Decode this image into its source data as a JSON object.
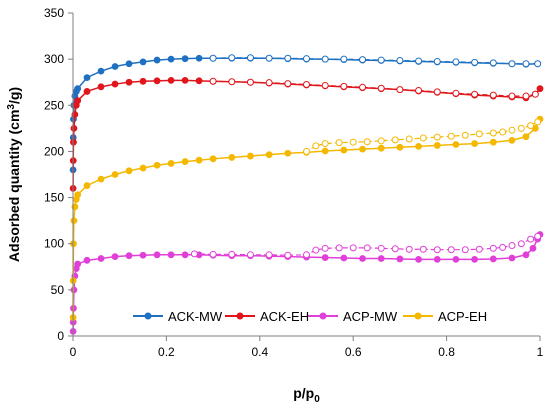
{
  "chart_data": {
    "type": "scatter",
    "xlabel": "p/p",
    "xlabel_sub": "0",
    "ylabel": "Adsorbed quantity (cm",
    "ylabel_sup": "3",
    "ylabel_end": "/g)",
    "xlim": [
      0,
      1
    ],
    "ylim": [
      0,
      350
    ],
    "x_ticks": [
      0,
      0.2,
      0.4,
      0.6,
      0.8,
      1
    ],
    "x_tick_labels": [
      "0",
      "0.2",
      "0.4",
      "0.6",
      "0.8",
      "1"
    ],
    "y_ticks": [
      0,
      50,
      100,
      150,
      200,
      250,
      300,
      350
    ],
    "y_tick_labels": [
      "0",
      "50",
      "100",
      "150",
      "200",
      "250",
      "300",
      "350"
    ],
    "grid": false,
    "legend_position": "bottom",
    "series": [
      {
        "name": "ACK-MW",
        "color": "#1f70c1",
        "adsorption": [
          [
            0.0002,
            180
          ],
          [
            0.0005,
            215
          ],
          [
            0.001,
            235
          ],
          [
            0.002,
            250
          ],
          [
            0.004,
            260
          ],
          [
            0.007,
            265
          ],
          [
            0.01,
            268
          ],
          [
            0.03,
            280
          ],
          [
            0.06,
            287
          ],
          [
            0.09,
            292
          ],
          [
            0.12,
            295
          ],
          [
            0.15,
            297
          ],
          [
            0.18,
            299
          ],
          [
            0.21,
            300
          ],
          [
            0.24,
            300.5
          ],
          [
            0.27,
            301
          ],
          [
            0.3,
            301
          ],
          [
            0.34,
            301
          ],
          [
            0.38,
            301
          ],
          [
            0.42,
            301
          ],
          [
            0.46,
            300.5
          ],
          [
            0.5,
            300
          ],
          [
            0.54,
            300
          ],
          [
            0.58,
            299.5
          ],
          [
            0.62,
            299
          ],
          [
            0.66,
            298.5
          ],
          [
            0.7,
            298
          ],
          [
            0.74,
            297.5
          ],
          [
            0.78,
            297
          ],
          [
            0.82,
            296.5
          ],
          [
            0.86,
            296
          ],
          [
            0.9,
            295.5
          ],
          [
            0.94,
            295
          ],
          [
            0.97,
            294.5
          ],
          [
            0.995,
            295
          ]
        ],
        "desorption": [
          [
            0.995,
            295
          ],
          [
            0.97,
            295
          ],
          [
            0.94,
            295
          ],
          [
            0.9,
            296
          ],
          [
            0.86,
            296.5
          ],
          [
            0.82,
            297
          ],
          [
            0.78,
            297.5
          ],
          [
            0.74,
            298
          ],
          [
            0.7,
            298.5
          ],
          [
            0.66,
            299
          ],
          [
            0.62,
            299.5
          ],
          [
            0.58,
            300
          ],
          [
            0.54,
            300
          ],
          [
            0.5,
            300.5
          ],
          [
            0.46,
            301
          ],
          [
            0.42,
            301
          ],
          [
            0.38,
            301.5
          ],
          [
            0.34,
            301.5
          ],
          [
            0.3,
            301
          ]
        ]
      },
      {
        "name": "ACK-EH",
        "color": "#e0161c",
        "adsorption": [
          [
            0.0002,
            160
          ],
          [
            0.0005,
            190
          ],
          [
            0.001,
            210
          ],
          [
            0.002,
            225
          ],
          [
            0.004,
            240
          ],
          [
            0.007,
            250
          ],
          [
            0.01,
            255
          ],
          [
            0.03,
            265
          ],
          [
            0.06,
            270
          ],
          [
            0.09,
            273
          ],
          [
            0.12,
            275
          ],
          [
            0.15,
            276
          ],
          [
            0.18,
            276.5
          ],
          [
            0.21,
            277
          ],
          [
            0.24,
            277
          ],
          [
            0.27,
            276.5
          ],
          [
            0.3,
            276
          ],
          [
            0.34,
            275.5
          ],
          [
            0.38,
            275
          ],
          [
            0.42,
            274
          ],
          [
            0.46,
            273
          ],
          [
            0.5,
            272
          ],
          [
            0.54,
            271
          ],
          [
            0.58,
            270
          ],
          [
            0.62,
            269
          ],
          [
            0.66,
            268
          ],
          [
            0.7,
            267
          ],
          [
            0.74,
            265.5
          ],
          [
            0.78,
            264
          ],
          [
            0.82,
            262.5
          ],
          [
            0.86,
            261
          ],
          [
            0.9,
            260
          ],
          [
            0.94,
            259
          ],
          [
            0.97,
            258
          ],
          [
            0.99,
            262
          ],
          [
            1.0,
            268
          ]
        ],
        "desorption": [
          [
            0.99,
            262
          ],
          [
            0.97,
            260
          ],
          [
            0.94,
            260
          ],
          [
            0.9,
            261
          ],
          [
            0.86,
            262
          ],
          [
            0.82,
            263
          ],
          [
            0.78,
            264.5
          ],
          [
            0.74,
            266
          ],
          [
            0.7,
            267
          ],
          [
            0.66,
            268.5
          ],
          [
            0.62,
            269.5
          ],
          [
            0.58,
            270.5
          ],
          [
            0.54,
            271.5
          ],
          [
            0.5,
            272.5
          ],
          [
            0.46,
            273.5
          ],
          [
            0.42,
            274.5
          ],
          [
            0.38,
            275
          ],
          [
            0.34,
            275.5
          ],
          [
            0.3,
            276
          ]
        ]
      },
      {
        "name": "ACP-MW",
        "color": "#e040d8",
        "adsorption": [
          [
            0.0002,
            5
          ],
          [
            0.0005,
            15
          ],
          [
            0.001,
            30
          ],
          [
            0.002,
            50
          ],
          [
            0.004,
            65
          ],
          [
            0.007,
            73
          ],
          [
            0.01,
            78
          ],
          [
            0.03,
            82
          ],
          [
            0.06,
            84
          ],
          [
            0.09,
            86
          ],
          [
            0.12,
            87
          ],
          [
            0.15,
            87.5
          ],
          [
            0.18,
            88
          ],
          [
            0.21,
            88
          ],
          [
            0.24,
            88
          ],
          [
            0.27,
            88
          ],
          [
            0.3,
            87.5
          ],
          [
            0.34,
            87
          ],
          [
            0.38,
            87
          ],
          [
            0.42,
            86.5
          ],
          [
            0.46,
            86
          ],
          [
            0.5,
            85.5
          ],
          [
            0.54,
            85
          ],
          [
            0.58,
            84.5
          ],
          [
            0.62,
            84
          ],
          [
            0.66,
            84
          ],
          [
            0.7,
            83.5
          ],
          [
            0.74,
            83
          ],
          [
            0.78,
            83
          ],
          [
            0.82,
            83
          ],
          [
            0.86,
            83
          ],
          [
            0.9,
            83.5
          ],
          [
            0.94,
            84.5
          ],
          [
            0.97,
            88
          ],
          [
            0.985,
            95
          ],
          [
            0.995,
            105
          ],
          [
            1.0,
            110
          ]
        ],
        "desorption": [
          [
            0.995,
            108
          ],
          [
            0.98,
            105
          ],
          [
            0.96,
            100
          ],
          [
            0.94,
            98
          ],
          [
            0.92,
            96
          ],
          [
            0.9,
            95
          ],
          [
            0.87,
            94
          ],
          [
            0.84,
            93.5
          ],
          [
            0.81,
            93.5
          ],
          [
            0.78,
            93.5
          ],
          [
            0.75,
            94
          ],
          [
            0.72,
            94
          ],
          [
            0.69,
            94.5
          ],
          [
            0.66,
            95
          ],
          [
            0.63,
            95.5
          ],
          [
            0.6,
            95.5
          ],
          [
            0.57,
            95.5
          ],
          [
            0.54,
            95
          ],
          [
            0.52,
            93
          ],
          [
            0.5,
            88
          ],
          [
            0.46,
            87.5
          ],
          [
            0.42,
            88
          ],
          [
            0.38,
            88
          ],
          [
            0.34,
            88.5
          ],
          [
            0.3,
            88.5
          ],
          [
            0.26,
            89
          ]
        ]
      },
      {
        "name": "ACP-EH",
        "color": "#f5b800",
        "adsorption": [
          [
            0.0002,
            20
          ],
          [
            0.0005,
            60
          ],
          [
            0.001,
            100
          ],
          [
            0.002,
            125
          ],
          [
            0.004,
            140
          ],
          [
            0.007,
            148
          ],
          [
            0.01,
            153
          ],
          [
            0.03,
            163
          ],
          [
            0.06,
            170
          ],
          [
            0.09,
            175
          ],
          [
            0.12,
            179
          ],
          [
            0.15,
            182
          ],
          [
            0.18,
            185
          ],
          [
            0.21,
            187
          ],
          [
            0.24,
            189
          ],
          [
            0.27,
            190.5
          ],
          [
            0.3,
            192
          ],
          [
            0.34,
            193.5
          ],
          [
            0.38,
            195
          ],
          [
            0.42,
            196.5
          ],
          [
            0.46,
            198
          ],
          [
            0.5,
            199
          ],
          [
            0.54,
            200.5
          ],
          [
            0.58,
            201.5
          ],
          [
            0.62,
            202.5
          ],
          [
            0.66,
            203.5
          ],
          [
            0.7,
            204.5
          ],
          [
            0.74,
            205.5
          ],
          [
            0.78,
            206.5
          ],
          [
            0.82,
            207.5
          ],
          [
            0.86,
            208.5
          ],
          [
            0.9,
            210
          ],
          [
            0.94,
            212
          ],
          [
            0.97,
            216
          ],
          [
            0.99,
            225
          ],
          [
            1.0,
            235
          ]
        ],
        "desorption": [
          [
            0.995,
            232
          ],
          [
            0.98,
            228
          ],
          [
            0.96,
            225
          ],
          [
            0.94,
            223
          ],
          [
            0.92,
            221
          ],
          [
            0.9,
            220
          ],
          [
            0.87,
            219
          ],
          [
            0.84,
            217.5
          ],
          [
            0.81,
            216.5
          ],
          [
            0.78,
            215.5
          ],
          [
            0.75,
            214.5
          ],
          [
            0.72,
            213.5
          ],
          [
            0.69,
            212.5
          ],
          [
            0.66,
            211.5
          ],
          [
            0.63,
            210.5
          ],
          [
            0.6,
            210
          ],
          [
            0.57,
            209.5
          ],
          [
            0.54,
            208.5
          ],
          [
            0.52,
            206
          ],
          [
            0.5,
            200
          ]
        ]
      }
    ]
  }
}
